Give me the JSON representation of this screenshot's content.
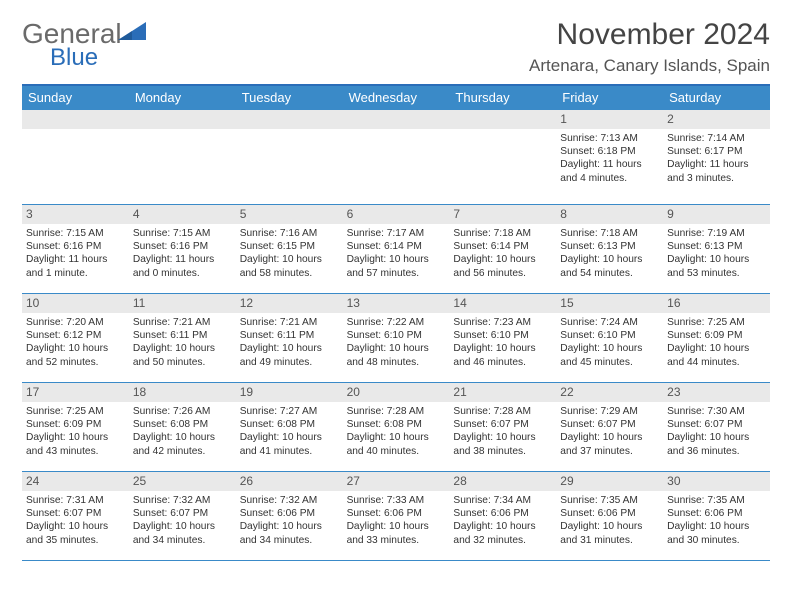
{
  "logo": {
    "word1": "General",
    "word2": "Blue",
    "color_gray": "#6a6a6a",
    "color_blue": "#2a6db8"
  },
  "title": "November 2024",
  "subtitle": "Artenara, Canary Islands, Spain",
  "colors": {
    "header_bar": "#3a8ac8",
    "header_border_top": "#2a6db8",
    "row_divider": "#3a8ac8",
    "date_strip_bg": "#e9e9e9",
    "text": "#333333",
    "title_text": "#444444"
  },
  "daynames": [
    "Sunday",
    "Monday",
    "Tuesday",
    "Wednesday",
    "Thursday",
    "Friday",
    "Saturday"
  ],
  "weeks": [
    [
      {
        "date": "",
        "lines": []
      },
      {
        "date": "",
        "lines": []
      },
      {
        "date": "",
        "lines": []
      },
      {
        "date": "",
        "lines": []
      },
      {
        "date": "",
        "lines": []
      },
      {
        "date": "1",
        "lines": [
          "Sunrise: 7:13 AM",
          "Sunset: 6:18 PM",
          "Daylight: 11 hours and 4 minutes."
        ]
      },
      {
        "date": "2",
        "lines": [
          "Sunrise: 7:14 AM",
          "Sunset: 6:17 PM",
          "Daylight: 11 hours and 3 minutes."
        ]
      }
    ],
    [
      {
        "date": "3",
        "lines": [
          "Sunrise: 7:15 AM",
          "Sunset: 6:16 PM",
          "Daylight: 11 hours and 1 minute."
        ]
      },
      {
        "date": "4",
        "lines": [
          "Sunrise: 7:15 AM",
          "Sunset: 6:16 PM",
          "Daylight: 11 hours and 0 minutes."
        ]
      },
      {
        "date": "5",
        "lines": [
          "Sunrise: 7:16 AM",
          "Sunset: 6:15 PM",
          "Daylight: 10 hours and 58 minutes."
        ]
      },
      {
        "date": "6",
        "lines": [
          "Sunrise: 7:17 AM",
          "Sunset: 6:14 PM",
          "Daylight: 10 hours and 57 minutes."
        ]
      },
      {
        "date": "7",
        "lines": [
          "Sunrise: 7:18 AM",
          "Sunset: 6:14 PM",
          "Daylight: 10 hours and 56 minutes."
        ]
      },
      {
        "date": "8",
        "lines": [
          "Sunrise: 7:18 AM",
          "Sunset: 6:13 PM",
          "Daylight: 10 hours and 54 minutes."
        ]
      },
      {
        "date": "9",
        "lines": [
          "Sunrise: 7:19 AM",
          "Sunset: 6:13 PM",
          "Daylight: 10 hours and 53 minutes."
        ]
      }
    ],
    [
      {
        "date": "10",
        "lines": [
          "Sunrise: 7:20 AM",
          "Sunset: 6:12 PM",
          "Daylight: 10 hours and 52 minutes."
        ]
      },
      {
        "date": "11",
        "lines": [
          "Sunrise: 7:21 AM",
          "Sunset: 6:11 PM",
          "Daylight: 10 hours and 50 minutes."
        ]
      },
      {
        "date": "12",
        "lines": [
          "Sunrise: 7:21 AM",
          "Sunset: 6:11 PM",
          "Daylight: 10 hours and 49 minutes."
        ]
      },
      {
        "date": "13",
        "lines": [
          "Sunrise: 7:22 AM",
          "Sunset: 6:10 PM",
          "Daylight: 10 hours and 48 minutes."
        ]
      },
      {
        "date": "14",
        "lines": [
          "Sunrise: 7:23 AM",
          "Sunset: 6:10 PM",
          "Daylight: 10 hours and 46 minutes."
        ]
      },
      {
        "date": "15",
        "lines": [
          "Sunrise: 7:24 AM",
          "Sunset: 6:10 PM",
          "Daylight: 10 hours and 45 minutes."
        ]
      },
      {
        "date": "16",
        "lines": [
          "Sunrise: 7:25 AM",
          "Sunset: 6:09 PM",
          "Daylight: 10 hours and 44 minutes."
        ]
      }
    ],
    [
      {
        "date": "17",
        "lines": [
          "Sunrise: 7:25 AM",
          "Sunset: 6:09 PM",
          "Daylight: 10 hours and 43 minutes."
        ]
      },
      {
        "date": "18",
        "lines": [
          "Sunrise: 7:26 AM",
          "Sunset: 6:08 PM",
          "Daylight: 10 hours and 42 minutes."
        ]
      },
      {
        "date": "19",
        "lines": [
          "Sunrise: 7:27 AM",
          "Sunset: 6:08 PM",
          "Daylight: 10 hours and 41 minutes."
        ]
      },
      {
        "date": "20",
        "lines": [
          "Sunrise: 7:28 AM",
          "Sunset: 6:08 PM",
          "Daylight: 10 hours and 40 minutes."
        ]
      },
      {
        "date": "21",
        "lines": [
          "Sunrise: 7:28 AM",
          "Sunset: 6:07 PM",
          "Daylight: 10 hours and 38 minutes."
        ]
      },
      {
        "date": "22",
        "lines": [
          "Sunrise: 7:29 AM",
          "Sunset: 6:07 PM",
          "Daylight: 10 hours and 37 minutes."
        ]
      },
      {
        "date": "23",
        "lines": [
          "Sunrise: 7:30 AM",
          "Sunset: 6:07 PM",
          "Daylight: 10 hours and 36 minutes."
        ]
      }
    ],
    [
      {
        "date": "24",
        "lines": [
          "Sunrise: 7:31 AM",
          "Sunset: 6:07 PM",
          "Daylight: 10 hours and 35 minutes."
        ]
      },
      {
        "date": "25",
        "lines": [
          "Sunrise: 7:32 AM",
          "Sunset: 6:07 PM",
          "Daylight: 10 hours and 34 minutes."
        ]
      },
      {
        "date": "26",
        "lines": [
          "Sunrise: 7:32 AM",
          "Sunset: 6:06 PM",
          "Daylight: 10 hours and 34 minutes."
        ]
      },
      {
        "date": "27",
        "lines": [
          "Sunrise: 7:33 AM",
          "Sunset: 6:06 PM",
          "Daylight: 10 hours and 33 minutes."
        ]
      },
      {
        "date": "28",
        "lines": [
          "Sunrise: 7:34 AM",
          "Sunset: 6:06 PM",
          "Daylight: 10 hours and 32 minutes."
        ]
      },
      {
        "date": "29",
        "lines": [
          "Sunrise: 7:35 AM",
          "Sunset: 6:06 PM",
          "Daylight: 10 hours and 31 minutes."
        ]
      },
      {
        "date": "30",
        "lines": [
          "Sunrise: 7:35 AM",
          "Sunset: 6:06 PM",
          "Daylight: 10 hours and 30 minutes."
        ]
      }
    ]
  ]
}
